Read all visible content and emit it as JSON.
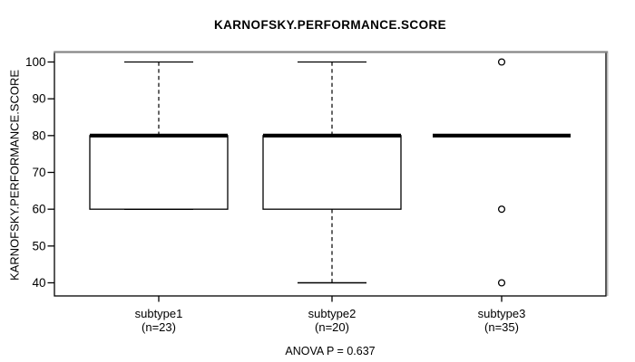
{
  "chart_data": {
    "type": "boxplot",
    "title": "KARNOFSKY.PERFORMANCE.SCORE",
    "ylabel": "KARNOFSKY.PERFORMANCE.SCORE",
    "ylim": [
      40,
      100
    ],
    "yticks": [
      40,
      50,
      60,
      70,
      80,
      90,
      100
    ],
    "grid": false,
    "legend": "none",
    "groups": [
      {
        "label": "subtype1",
        "n_label": "(n=23)",
        "n": 23,
        "min": 60,
        "q1": 60,
        "median": 80,
        "q3": 80,
        "max": 100,
        "outliers": []
      },
      {
        "label": "subtype2",
        "n_label": "(n=20)",
        "n": 20,
        "min": 40,
        "q1": 60,
        "median": 80,
        "q3": 80,
        "max": 100,
        "outliers": []
      },
      {
        "label": "subtype3",
        "n_label": "(n=35)",
        "n": 35,
        "min": 80,
        "q1": 80,
        "median": 80,
        "q3": 80,
        "max": 80,
        "outliers": [
          100,
          60,
          40
        ]
      }
    ],
    "annotation": "ANOVA P = 0.637"
  },
  "colors": {
    "stroke": "#000000",
    "frame_top": "#878787",
    "frame_shadow": "#aaaaaa",
    "background": "#ffffff"
  }
}
